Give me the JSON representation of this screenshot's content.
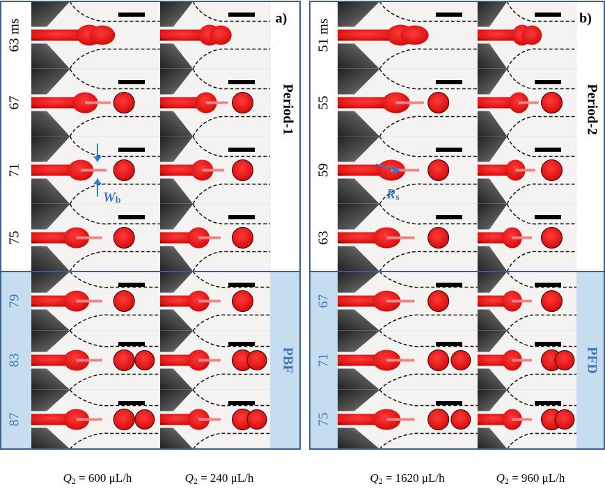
{
  "panels": [
    {
      "label": "a)",
      "period": "Period-1",
      "regime": "PBF",
      "times": [
        "63 ms",
        "67",
        "71",
        "75",
        "79",
        "83",
        "87"
      ],
      "captions": [
        {
          "symbol": "Q",
          "subscript": "2",
          "rest": " = 600 μL/h"
        },
        {
          "symbol": "Q",
          "subscript": "2",
          "rest": " = 240 μL/h"
        }
      ],
      "annotation": {
        "symbol": "W",
        "subscript": "b"
      }
    },
    {
      "label": "b)",
      "period": "Period-2",
      "regime": "PFD",
      "times": [
        "51 ms",
        "55",
        "59",
        "63",
        "67",
        "71",
        "75"
      ],
      "captions": [
        {
          "symbol": "Q",
          "subscript": "2",
          "rest": " = 1620 μL/h"
        },
        {
          "symbol": "Q",
          "subscript": "2",
          "rest": " = 960 μL/h"
        }
      ],
      "annotation": {
        "symbol": "R",
        "subscript": "s"
      }
    }
  ]
}
